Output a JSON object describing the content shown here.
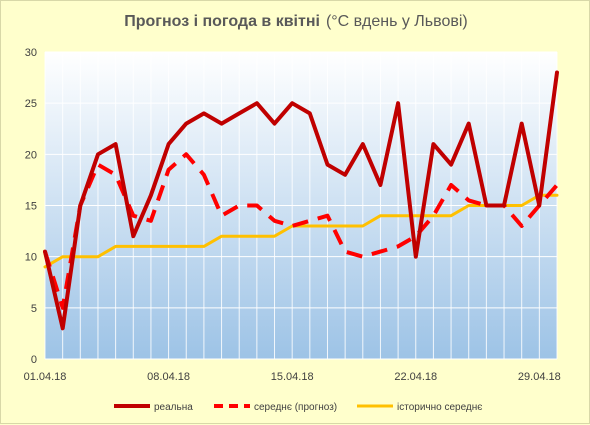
{
  "chart_data": {
    "type": "line",
    "title": "Прогноз і погода в квітні",
    "subtitle": "(°C вдень у Львові)",
    "ylim": [
      0,
      30
    ],
    "yticks": [
      0,
      5,
      10,
      15,
      20,
      25,
      30
    ],
    "x": [
      "01.04.18",
      "02.04.18",
      "03.04.18",
      "04.04.18",
      "05.04.18",
      "06.04.18",
      "07.04.18",
      "08.04.18",
      "09.04.18",
      "10.04.18",
      "11.04.18",
      "12.04.18",
      "13.04.18",
      "14.04.18",
      "15.04.18",
      "16.04.18",
      "17.04.18",
      "18.04.18",
      "19.04.18",
      "20.04.18",
      "21.04.18",
      "22.04.18",
      "23.04.18",
      "24.04.18",
      "25.04.18",
      "26.04.18",
      "27.04.18",
      "28.04.18",
      "29.04.18",
      "30.04.18"
    ],
    "xtick_labels": [
      "01.04.18",
      "08.04.18",
      "15.04.18",
      "22.04.18",
      "29.04.18"
    ],
    "grid": true,
    "legend_position": "bottom",
    "series": [
      {
        "name": "реальна",
        "color": "#c00000",
        "style": "solid",
        "values": [
          10.5,
          3,
          15,
          20,
          21,
          12,
          16,
          21,
          23,
          24,
          23,
          24,
          25,
          23,
          25,
          24,
          19,
          18,
          21,
          17,
          25,
          10,
          21,
          19,
          23,
          15,
          15,
          23,
          15,
          28
        ]
      },
      {
        "name": "середнє (прогноз)",
        "color": "#ff0000",
        "style": "dashed",
        "values": [
          10.5,
          5,
          15,
          19,
          18,
          14,
          13.5,
          18.5,
          20,
          18,
          14,
          15,
          15,
          13.5,
          13,
          13.5,
          14,
          10.5,
          10,
          10.5,
          11,
          12,
          14,
          17,
          15.5,
          15,
          15,
          13,
          15,
          17
        ]
      },
      {
        "name": "історично середнє",
        "color": "#ffc000",
        "style": "solid",
        "values": [
          9,
          10,
          10,
          10,
          11,
          11,
          11,
          11,
          11,
          11,
          12,
          12,
          12,
          12,
          13,
          13,
          13,
          13,
          13,
          14,
          14,
          14,
          14,
          14,
          15,
          15,
          15,
          15,
          16,
          16
        ]
      }
    ]
  }
}
